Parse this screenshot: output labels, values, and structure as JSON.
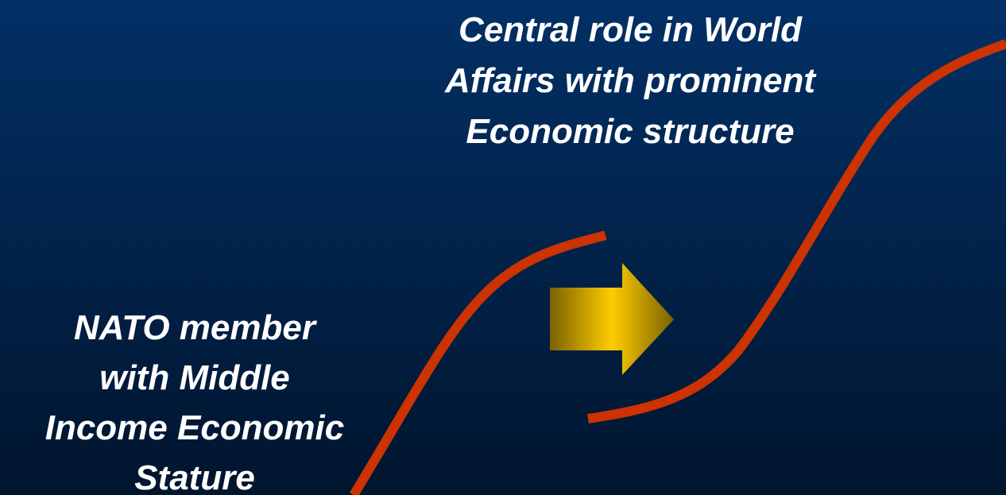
{
  "texts": {
    "top": [
      "Central role in World",
      "Affairs with prominent",
      "Economic structure"
    ],
    "bottom": [
      "NATO member",
      "with Middle",
      "Income Economic",
      "Stature"
    ]
  }
}
